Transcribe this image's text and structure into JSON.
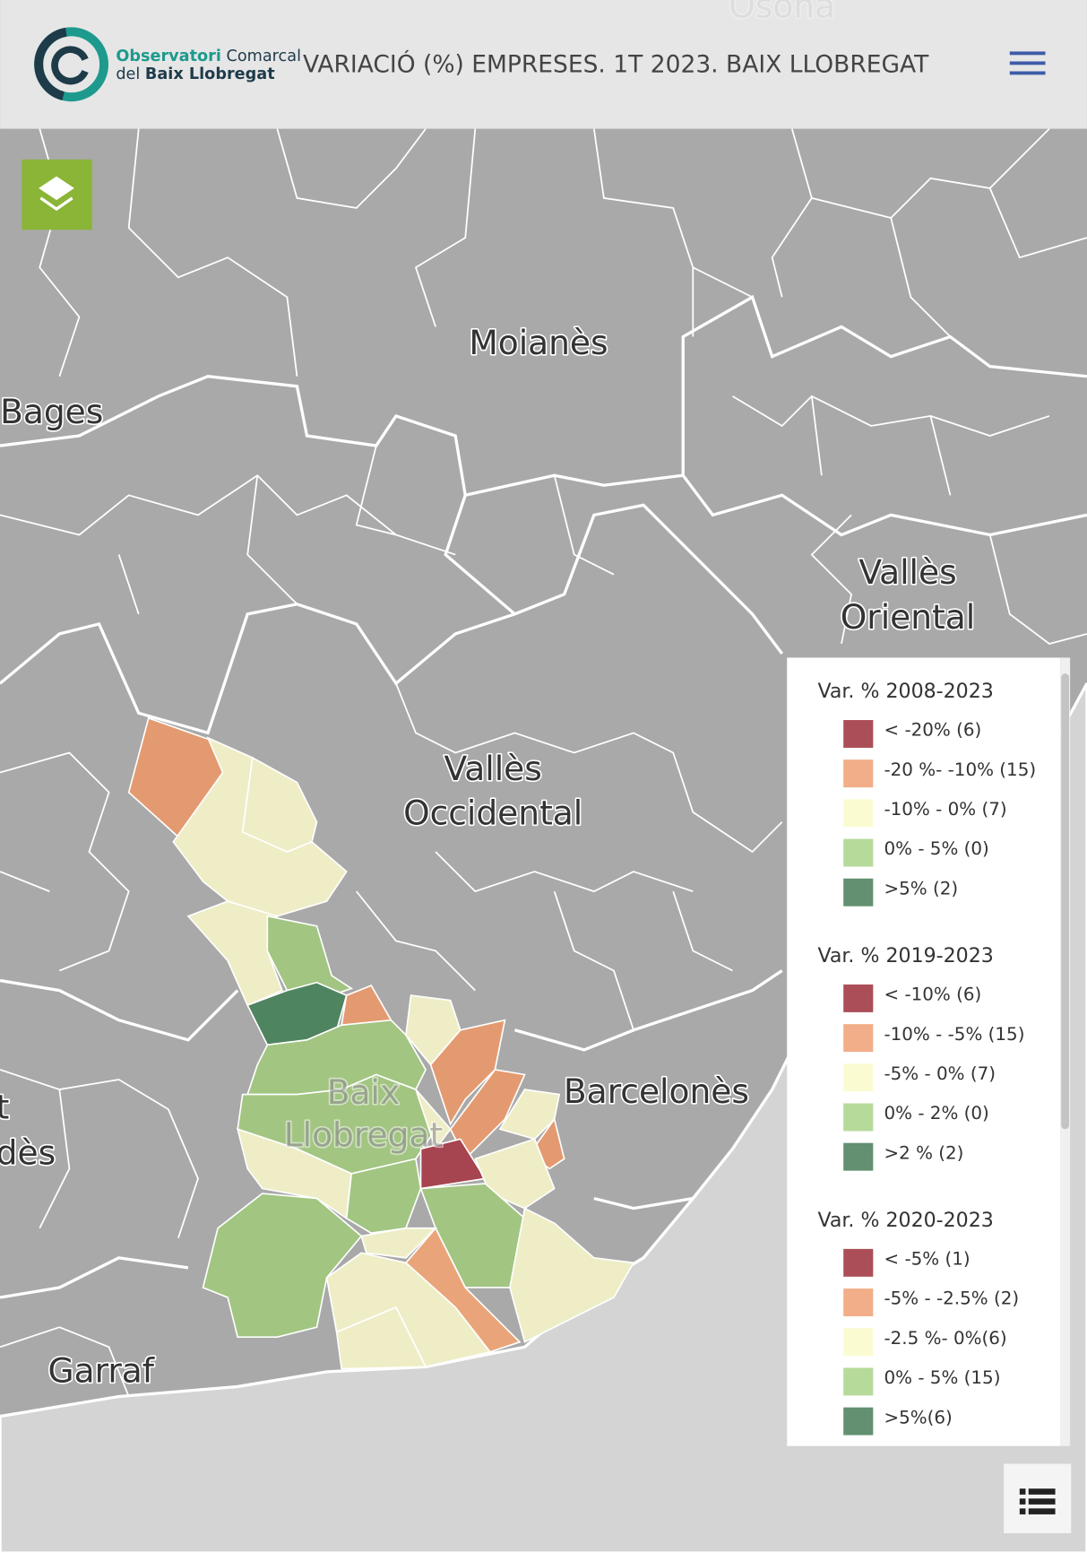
{
  "header": {
    "logo": {
      "line1": [
        "Observatori",
        "Comarcal"
      ],
      "line2": [
        "del",
        "Baix Llobregat"
      ]
    },
    "title": "VARIACIÓ (%) EMPRESES. 1T 2023. BAIX LLOBREGAT"
  },
  "map": {
    "labels": [
      [
        "Osona"
      ],
      [
        "Moianès"
      ],
      [
        "Bages"
      ],
      [
        "Vallès",
        "Oriental"
      ],
      [
        "Vallès",
        "Occidental"
      ],
      [
        "Baix",
        "Llobregat"
      ],
      [
        "Barcelonès"
      ],
      [
        "Garraf"
      ],
      [
        "t",
        "dès"
      ]
    ]
  },
  "legend": {
    "groups": [
      {
        "title": "Var. % 2008-2023",
        "items": [
          {
            "label": "< -20% (6)",
            "color": "#a6444f"
          },
          {
            "label": "-20 %- -10% (15)",
            "color": "#f0aa82"
          },
          {
            "label": "-10% - 0% (7)",
            "color": "#fbfbd0"
          },
          {
            "label": "0% - 5% (0)",
            "color": "#b2d895"
          },
          {
            "label": ">5% (2)",
            "color": "#5a8a68"
          }
        ]
      },
      {
        "title": "Var. % 2019-2023",
        "items": [
          {
            "label": "< -10% (6)",
            "color": "#a6444f"
          },
          {
            "label": "-10% - -5% (15)",
            "color": "#f0aa82"
          },
          {
            "label": "-5% - 0% (7)",
            "color": "#fbfbd0"
          },
          {
            "label": "0% - 2% (0)",
            "color": "#b2d895"
          },
          {
            "label": ">2 % (2)",
            "color": "#5a8a68"
          }
        ]
      },
      {
        "title": "Var. % 2020-2023",
        "items": [
          {
            "label": "< -5% (1)",
            "color": "#a6444f"
          },
          {
            "label": "-5% - -2.5% (2)",
            "color": "#f0aa82"
          },
          {
            "label": "-2.5 %- 0%(6)",
            "color": "#fbfbd0"
          },
          {
            "label": "0% - 5% (15)",
            "color": "#b2d895"
          },
          {
            "label": ">5%(6)",
            "color": "#5a8a68"
          }
        ]
      }
    ]
  }
}
